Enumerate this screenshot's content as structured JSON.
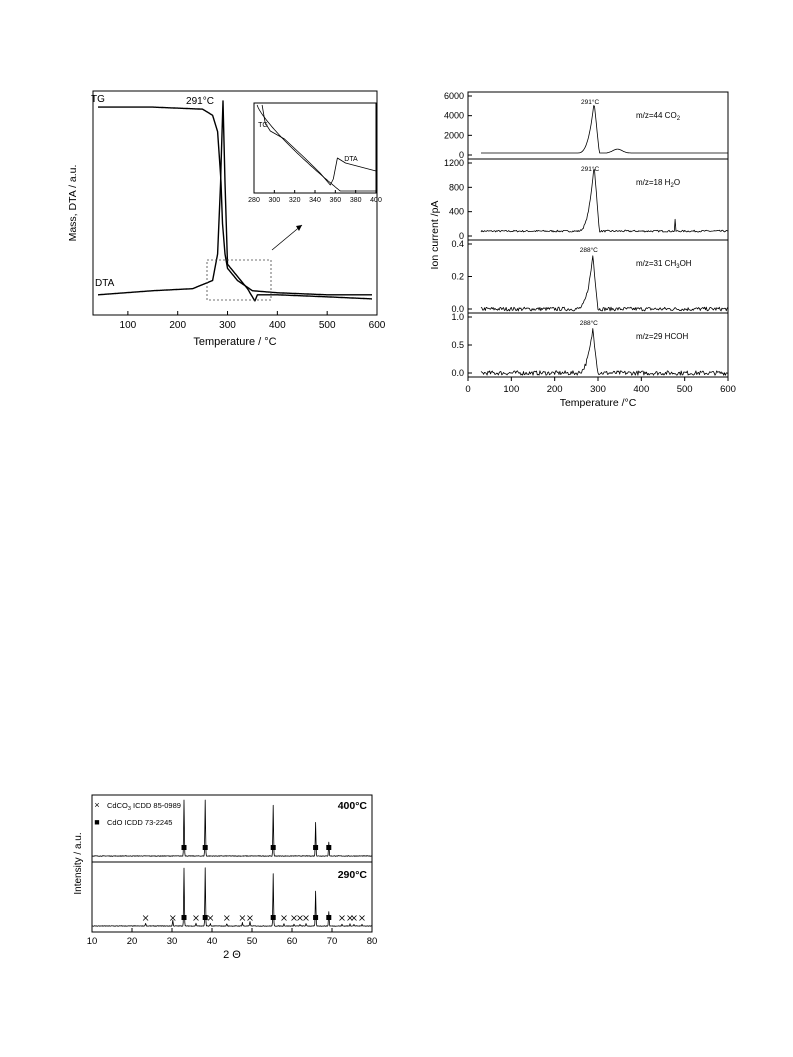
{
  "chart_data": [
    {
      "type": "line",
      "xlabel": "Temperature  / °C",
      "ylabel": "Mass, DTA / a.u.",
      "xlim": [
        30,
        600
      ],
      "xticks": [
        "100",
        "200",
        "300",
        "400",
        "500",
        "600"
      ],
      "series": [
        {
          "name": "TG",
          "x": [
            40,
            150,
            250,
            270,
            280,
            287,
            290,
            295,
            300,
            320,
            350,
            400,
            500,
            590
          ],
          "y": [
            0.97,
            0.97,
            0.96,
            0.93,
            0.85,
            0.6,
            0.4,
            0.25,
            0.18,
            0.12,
            0.07,
            0.06,
            0.05,
            0.05
          ]
        },
        {
          "name": "DTA",
          "x": [
            40,
            150,
            230,
            270,
            280,
            286,
            291,
            295,
            300,
            320,
            340,
            355,
            360,
            400,
            500,
            590
          ],
          "y": [
            0.05,
            0.07,
            0.08,
            0.12,
            0.25,
            0.6,
            1.0,
            0.6,
            0.2,
            0.14,
            0.08,
            0.02,
            0.05,
            0.05,
            0.04,
            0.03
          ]
        }
      ],
      "annotations": [
        "291°C",
        "TG",
        "DTA"
      ],
      "inset": {
        "xlim": [
          280,
          400
        ],
        "xticks": [
          "280",
          "300",
          "320",
          "340",
          "360",
          "380",
          "400"
        ],
        "labels": [
          "TG",
          "DTA"
        ]
      }
    },
    {
      "type": "line",
      "xlabel": "Temperature  /°C",
      "ylabel": "Ion current  /pA",
      "xlim": [
        0,
        600
      ],
      "xticks": [
        "0",
        "100",
        "200",
        "300",
        "400",
        "500",
        "600"
      ],
      "panels": [
        {
          "label": "m/z=44 CO2",
          "label_main": "m/z=44 CO",
          "label_sub": "2",
          "label_tail": "",
          "peak": "291°C",
          "peak_x": 291,
          "yticks": [
            "0",
            "2000",
            "4000",
            "6000"
          ],
          "ymax": 6000,
          "peak_y": 5200,
          "baseline": 200,
          "noise": 0,
          "bump": 400
        },
        {
          "label": "m/z=18 H2O",
          "label_main": "m/z=18 H",
          "label_sub": "2",
          "label_tail": "O",
          "peak": "291°C",
          "peak_x": 291,
          "yticks": [
            "0",
            "400",
            "800",
            "1200"
          ],
          "ymax": 1200,
          "peak_y": 1100,
          "baseline": 80,
          "noise": 15,
          "bump": 0
        },
        {
          "label": "m/z=31 CH3OH",
          "label_main": "m/z=31 CH",
          "label_sub": "3",
          "label_tail": "OH",
          "peak": "288°C",
          "peak_x": 288,
          "yticks": [
            "0.0",
            "0.2",
            "0.4"
          ],
          "ymax": 0.4,
          "peak_y": 0.33,
          "baseline": 0.0,
          "noise": 0.012,
          "bump": 0
        },
        {
          "label": "m/z=29 HCOH",
          "label_main": "m/z=29 HCOH",
          "label_sub": "",
          "label_tail": "",
          "peak": "288°C",
          "peak_x": 288,
          "yticks": [
            "0.0",
            "0.5",
            "1.0"
          ],
          "ymax": 1.0,
          "peak_y": 0.78,
          "baseline": 0.0,
          "noise": 0.04,
          "bump": 0
        }
      ]
    },
    {
      "type": "line",
      "xlabel": "2 Θ",
      "ylabel": "Intensity / a.u.",
      "xlim": [
        10,
        80
      ],
      "xticks": [
        "10",
        "20",
        "30",
        "40",
        "50",
        "60",
        "70",
        "80"
      ],
      "legend": [
        {
          "marker": "×",
          "text_main": "CdCO",
          "text_sub": "3",
          "text_tail": " ICDD 85-0989"
        },
        {
          "marker": "■",
          "text_main": "CdO ICDD 73-2245",
          "text_sub": "",
          "text_tail": ""
        }
      ],
      "series": [
        {
          "name": "400°C",
          "peaks_x": [
            33.0,
            38.3,
            55.3,
            65.9,
            69.2
          ],
          "peaks_y": [
            1.0,
            1.0,
            0.9,
            0.6,
            0.25
          ]
        },
        {
          "name": "290°C",
          "peaks_x": [
            23.4,
            30.2,
            33.0,
            36.0,
            38.3,
            39.6,
            43.7,
            47.6,
            49.5,
            55.3,
            58.0,
            60.5,
            62.0,
            63.5,
            65.9,
            69.2,
            72.5,
            74.5,
            75.5,
            77.5
          ],
          "peaks_y": [
            0.05,
            0.1,
            1.0,
            0.05,
            1.0,
            0.04,
            0.04,
            0.06,
            0.08,
            0.9,
            0.04,
            0.03,
            0.03,
            0.04,
            0.6,
            0.25,
            0.03,
            0.04,
            0.03,
            0.03
          ]
        }
      ],
      "cdco3_markers_x": [
        23.4,
        30.2,
        36.0,
        39.6,
        43.7,
        47.6,
        49.5,
        58.0,
        60.5,
        62.0,
        63.5,
        72.5,
        74.5,
        75.5,
        77.5
      ],
      "cdo_markers_x": [
        33.0,
        38.3,
        55.3,
        65.9,
        69.2
      ]
    }
  ]
}
